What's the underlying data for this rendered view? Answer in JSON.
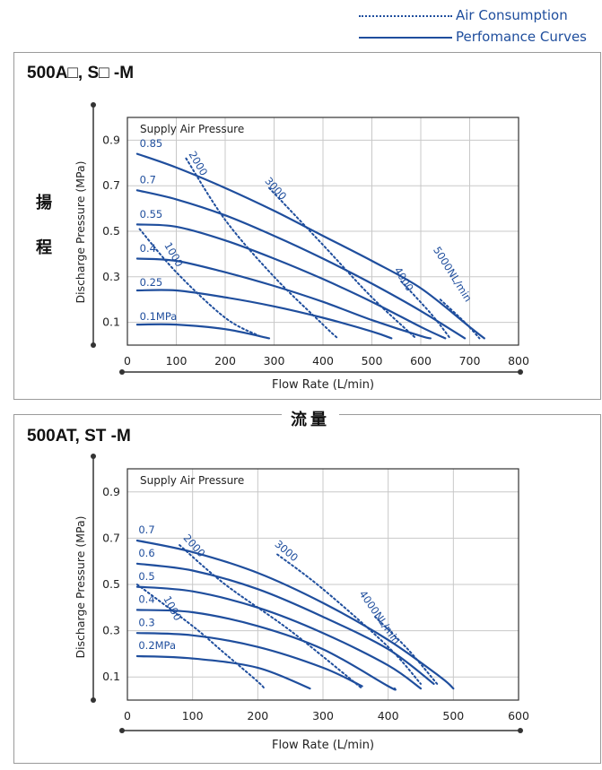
{
  "legend": {
    "air_consumption": "Air Consumption",
    "performance_curves": "Perfomance Curves"
  },
  "side_labels": {
    "char1": "揚",
    "char2": "程"
  },
  "middle_label": "流量",
  "chart_data": [
    {
      "type": "line",
      "title": "500A□, S□ -M",
      "xlabel": "Flow Rate (L/min)",
      "ylabel": "Discharge Pressure (MPa)",
      "xlim": [
        0,
        800
      ],
      "ylim": [
        0,
        1.0
      ],
      "xticks": [
        "0",
        "100",
        "200",
        "300",
        "400",
        "500",
        "600",
        "700",
        "800"
      ],
      "yticks": [
        "0.1",
        "0.3",
        "0.5",
        "0.7",
        "0.9"
      ],
      "grid": true,
      "pressure_header": "Supply Air Pressure",
      "series": [
        {
          "name": "0.85",
          "kind": "performance",
          "x": [
            20,
            100,
            200,
            300,
            400,
            500,
            600,
            700,
            730
          ],
          "y": [
            0.84,
            0.78,
            0.69,
            0.59,
            0.48,
            0.37,
            0.25,
            0.08,
            0.03
          ]
        },
        {
          "name": "0.7",
          "kind": "performance",
          "x": [
            20,
            100,
            200,
            300,
            400,
            500,
            600,
            690
          ],
          "y": [
            0.68,
            0.64,
            0.57,
            0.48,
            0.38,
            0.27,
            0.15,
            0.03
          ]
        },
        {
          "name": "0.55",
          "kind": "performance",
          "x": [
            20,
            100,
            200,
            300,
            400,
            500,
            600,
            650
          ],
          "y": [
            0.53,
            0.52,
            0.46,
            0.38,
            0.29,
            0.19,
            0.08,
            0.03
          ]
        },
        {
          "name": "0.4",
          "kind": "performance",
          "x": [
            20,
            100,
            200,
            300,
            400,
            500,
            600,
            620
          ],
          "y": [
            0.38,
            0.37,
            0.32,
            0.26,
            0.19,
            0.11,
            0.04,
            0.03
          ]
        },
        {
          "name": "0.25",
          "kind": "performance",
          "x": [
            20,
            100,
            200,
            300,
            400,
            500,
            540
          ],
          "y": [
            0.24,
            0.24,
            0.21,
            0.17,
            0.12,
            0.06,
            0.03
          ]
        },
        {
          "name": "0.1MPa",
          "kind": "performance",
          "x": [
            20,
            100,
            200,
            290
          ],
          "y": [
            0.09,
            0.09,
            0.07,
            0.03
          ]
        },
        {
          "name": "1000",
          "kind": "consumption",
          "x": [
            25,
            100,
            200,
            270
          ],
          "y": [
            0.51,
            0.32,
            0.12,
            0.04
          ]
        },
        {
          "name": "2000",
          "kind": "consumption",
          "x": [
            120,
            200,
            300,
            400,
            430
          ],
          "y": [
            0.82,
            0.55,
            0.3,
            0.09,
            0.03
          ]
        },
        {
          "name": "3000",
          "kind": "consumption",
          "x": [
            290,
            400,
            500,
            590
          ],
          "y": [
            0.69,
            0.44,
            0.21,
            0.03
          ]
        },
        {
          "name": "4000",
          "kind": "consumption",
          "x": [
            560,
            620,
            660
          ],
          "y": [
            0.28,
            0.14,
            0.03
          ]
        },
        {
          "name": "5000NL/min",
          "kind": "consumption",
          "x": [
            640,
            690,
            720
          ],
          "y": [
            0.2,
            0.1,
            0.03
          ]
        }
      ],
      "curve_labels": [
        {
          "text": "0.85",
          "x": 25,
          "y": 0.87
        },
        {
          "text": "0.7",
          "x": 25,
          "y": 0.71
        },
        {
          "text": "0.55",
          "x": 25,
          "y": 0.56
        },
        {
          "text": "0.4",
          "x": 25,
          "y": 0.41
        },
        {
          "text": "0.25",
          "x": 25,
          "y": 0.26
        },
        {
          "text": "0.1MPa",
          "x": 25,
          "y": 0.11
        },
        {
          "text": "1000",
          "x": 75,
          "y": 0.44,
          "rotate": 60
        },
        {
          "text": "2000",
          "x": 125,
          "y": 0.84,
          "rotate": 60
        },
        {
          "text": "3000",
          "x": 280,
          "y": 0.72,
          "rotate": 48
        },
        {
          "text": "4000",
          "x": 545,
          "y": 0.33,
          "rotate": 58
        },
        {
          "text": "5000NL/min",
          "x": 625,
          "y": 0.42,
          "rotate": 58
        }
      ]
    },
    {
      "type": "line",
      "title": "500AT, ST -M",
      "xlabel": "Flow Rate (L/min)",
      "ylabel": "Discharge Pressure (MPa)",
      "xlim": [
        0,
        600
      ],
      "ylim": [
        0,
        1.0
      ],
      "xticks": [
        "0",
        "100",
        "200",
        "300",
        "400",
        "500",
        "600"
      ],
      "yticks": [
        "0.1",
        "0.3",
        "0.5",
        "0.7",
        "0.9"
      ],
      "grid": true,
      "pressure_header": "Supply Air Pressure",
      "series": [
        {
          "name": "0.7",
          "kind": "performance",
          "x": [
            15,
            100,
            200,
            300,
            400,
            480,
            500
          ],
          "y": [
            0.69,
            0.64,
            0.55,
            0.42,
            0.26,
            0.1,
            0.05
          ]
        },
        {
          "name": "0.6",
          "kind": "performance",
          "x": [
            15,
            100,
            200,
            300,
            400,
            470
          ],
          "y": [
            0.59,
            0.56,
            0.48,
            0.36,
            0.22,
            0.07
          ]
        },
        {
          "name": "0.5",
          "kind": "performance",
          "x": [
            15,
            100,
            200,
            300,
            400,
            450
          ],
          "y": [
            0.49,
            0.47,
            0.4,
            0.29,
            0.15,
            0.05
          ]
        },
        {
          "name": "0.4",
          "kind": "performance",
          "x": [
            15,
            100,
            200,
            300,
            400,
            410
          ],
          "y": [
            0.39,
            0.38,
            0.32,
            0.22,
            0.06,
            0.05
          ]
        },
        {
          "name": "0.3",
          "kind": "performance",
          "x": [
            15,
            100,
            200,
            300,
            360
          ],
          "y": [
            0.29,
            0.28,
            0.23,
            0.14,
            0.06
          ]
        },
        {
          "name": "0.2MPa",
          "kind": "performance",
          "x": [
            15,
            100,
            200,
            280
          ],
          "y": [
            0.19,
            0.18,
            0.14,
            0.05
          ]
        },
        {
          "name": "1000",
          "kind": "consumption",
          "x": [
            15,
            100,
            150,
            200,
            210
          ],
          "y": [
            0.5,
            0.32,
            0.2,
            0.08,
            0.05
          ]
        },
        {
          "name": "2000",
          "kind": "consumption",
          "x": [
            80,
            150,
            250,
            360
          ],
          "y": [
            0.67,
            0.5,
            0.3,
            0.05
          ]
        },
        {
          "name": "3000",
          "kind": "consumption",
          "x": [
            230,
            300,
            400,
            450
          ],
          "y": [
            0.63,
            0.48,
            0.23,
            0.07
          ]
        },
        {
          "name": "4000NL/min",
          "kind": "consumption",
          "x": [
            380,
            430,
            475
          ],
          "y": [
            0.36,
            0.22,
            0.07
          ]
        }
      ],
      "curve_labels": [
        {
          "text": "0.7",
          "x": 17,
          "y": 0.72
        },
        {
          "text": "0.6",
          "x": 17,
          "y": 0.62
        },
        {
          "text": "0.5",
          "x": 17,
          "y": 0.52
        },
        {
          "text": "0.4",
          "x": 17,
          "y": 0.42
        },
        {
          "text": "0.3",
          "x": 17,
          "y": 0.32
        },
        {
          "text": "0.2MPa",
          "x": 17,
          "y": 0.22
        },
        {
          "text": "1000",
          "x": 55,
          "y": 0.44,
          "rotate": 62
        },
        {
          "text": "2000",
          "x": 85,
          "y": 0.7,
          "rotate": 48
        },
        {
          "text": "3000",
          "x": 225,
          "y": 0.67,
          "rotate": 40
        },
        {
          "text": "4000NL/min",
          "x": 355,
          "y": 0.46,
          "rotate": 55
        }
      ]
    }
  ]
}
